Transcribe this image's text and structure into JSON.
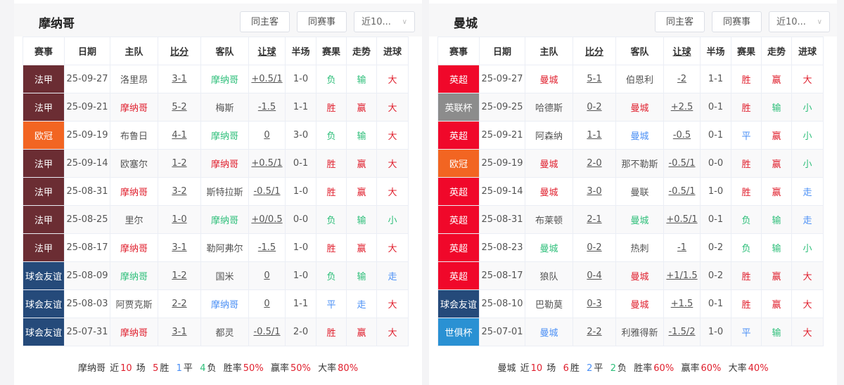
{
  "colors": {
    "win": "#e0202e",
    "loss": "#2ebf7a",
    "draw": "#4a8ff5"
  },
  "comp_colors": {
    "法甲": "#6b2d33",
    "欧冠": "#f26522",
    "球会友谊": "#254a7a",
    "英超": "#f0082a",
    "英联杯": "#8c8c8c",
    "世俱杯": "#2a91d3"
  },
  "headers": [
    "赛事",
    "日期",
    "主队",
    "比分",
    "客队",
    "让球",
    "半场",
    "赛果",
    "走势",
    "进球"
  ],
  "panels": [
    {
      "title": "摩纳哥",
      "btn_home_away": "同主客",
      "btn_same_comp": "同赛事",
      "select": "近10...",
      "rows": [
        [
          "法甲",
          "25-09-27",
          "洛里昂",
          "3-1",
          "摩纳哥",
          "+0.5/1",
          "1-0",
          "负",
          "输",
          "大",
          "away"
        ],
        [
          "法甲",
          "25-09-21",
          "摩纳哥",
          "5-2",
          "梅斯",
          "-1.5",
          "1-1",
          "胜",
          "赢",
          "大",
          "home"
        ],
        [
          "欧冠",
          "25-09-19",
          "布鲁日",
          "4-1",
          "摩纳哥",
          "0",
          "3-0",
          "负",
          "输",
          "大",
          "away"
        ],
        [
          "法甲",
          "25-09-14",
          "欧塞尔",
          "1-2",
          "摩纳哥",
          "+0.5/1",
          "0-1",
          "胜",
          "赢",
          "大",
          "away"
        ],
        [
          "法甲",
          "25-08-31",
          "摩纳哥",
          "3-2",
          "斯特拉斯",
          "-0.5/1",
          "1-0",
          "胜",
          "赢",
          "大",
          "home"
        ],
        [
          "法甲",
          "25-08-25",
          "里尔",
          "1-0",
          "摩纳哥",
          "+0/0.5",
          "0-0",
          "负",
          "输",
          "小",
          "away"
        ],
        [
          "法甲",
          "25-08-17",
          "摩纳哥",
          "3-1",
          "勒阿弗尔",
          "-1.5",
          "1-0",
          "胜",
          "赢",
          "大",
          "home"
        ],
        [
          "球会友谊",
          "25-08-09",
          "摩纳哥",
          "1-2",
          "国米",
          "0",
          "1-0",
          "负",
          "输",
          "走",
          "home"
        ],
        [
          "球会友谊",
          "25-08-03",
          "阿贾克斯",
          "2-2",
          "摩纳哥",
          "0",
          "1-1",
          "平",
          "走",
          "大",
          "away"
        ],
        [
          "球会友谊",
          "25-07-31",
          "摩纳哥",
          "3-1",
          "都灵",
          "-0.5/1",
          "2-0",
          "胜",
          "赢",
          "大",
          "home"
        ]
      ],
      "summary": {
        "team": "摩纳哥",
        "near": "近",
        "games": "10",
        "games_unit": "场",
        "wins": "5",
        "wins_label": "胜",
        "draws": "1",
        "draws_label": "平",
        "losses": "4",
        "losses_label": "负",
        "win_rate_label": "胜率",
        "win_rate": "50%",
        "cover_rate_label": "赢率",
        "cover_rate": "50%",
        "over_rate_label": "大率",
        "over_rate": "80%"
      }
    },
    {
      "title": "曼城",
      "btn_home_away": "同主客",
      "btn_same_comp": "同赛事",
      "select": "近10...",
      "rows": [
        [
          "英超",
          "25-09-27",
          "曼城",
          "5-1",
          "伯恩利",
          "-2",
          "1-1",
          "胜",
          "赢",
          "大",
          "home"
        ],
        [
          "英联杯",
          "25-09-25",
          "哈德斯",
          "0-2",
          "曼城",
          "+2.5",
          "0-1",
          "胜",
          "输",
          "小",
          "away"
        ],
        [
          "英超",
          "25-09-21",
          "阿森纳",
          "1-1",
          "曼城",
          "-0.5",
          "0-1",
          "平",
          "赢",
          "小",
          "away"
        ],
        [
          "欧冠",
          "25-09-19",
          "曼城",
          "2-0",
          "那不勒斯",
          "-0.5/1",
          "0-0",
          "胜",
          "赢",
          "小",
          "home"
        ],
        [
          "英超",
          "25-09-14",
          "曼城",
          "3-0",
          "曼联",
          "-0.5/1",
          "1-0",
          "胜",
          "赢",
          "走",
          "home"
        ],
        [
          "英超",
          "25-08-31",
          "布莱顿",
          "2-1",
          "曼城",
          "+0.5/1",
          "0-1",
          "负",
          "输",
          "走",
          "away"
        ],
        [
          "英超",
          "25-08-23",
          "曼城",
          "0-2",
          "热刺",
          "-1",
          "0-2",
          "负",
          "输",
          "小",
          "home"
        ],
        [
          "英超",
          "25-08-17",
          "狼队",
          "0-4",
          "曼城",
          "+1/1.5",
          "0-2",
          "胜",
          "赢",
          "大",
          "away"
        ],
        [
          "球会友谊",
          "25-08-10",
          "巴勒莫",
          "0-3",
          "曼城",
          "+1.5",
          "0-1",
          "胜",
          "赢",
          "大",
          "away"
        ],
        [
          "世俱杯",
          "25-07-01",
          "曼城",
          "2-2",
          "利雅得新",
          "-1.5/2",
          "1-0",
          "平",
          "输",
          "大",
          "home"
        ]
      ],
      "summary": {
        "team": "曼城",
        "near": "近",
        "games": "10",
        "games_unit": "场",
        "wins": "6",
        "wins_label": "胜",
        "draws": "2",
        "draws_label": "平",
        "losses": "2",
        "losses_label": "负",
        "win_rate_label": "胜率",
        "win_rate": "60%",
        "cover_rate_label": "赢率",
        "cover_rate": "60%",
        "over_rate_label": "大率",
        "over_rate": "40%"
      }
    }
  ]
}
